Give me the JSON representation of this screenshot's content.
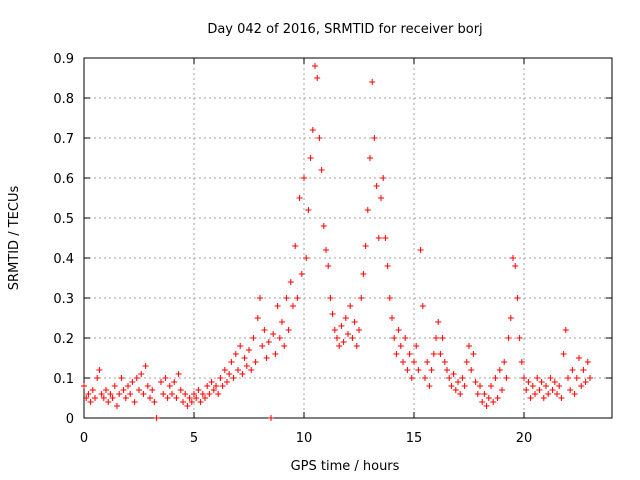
{
  "chart_data": {
    "type": "scatter",
    "title": "Day 042 of 2016, SRMTID for receiver borj",
    "xlabel": "GPS time / hours",
    "ylabel": "SRMTID / TECUs",
    "xlim": [
      0,
      24
    ],
    "ylim": [
      0,
      0.9
    ],
    "xticks": [
      "0",
      "5",
      "10",
      "15",
      "20"
    ],
    "yticks": [
      "0",
      "0.1",
      "0.2",
      "0.3",
      "0.4",
      "0.5",
      "0.6",
      "0.7",
      "0.8",
      "0.9"
    ],
    "grid": true,
    "marker": "plus",
    "marker_color": "#ff0000",
    "series": [
      {
        "name": "SRMTID",
        "points": [
          [
            0.0,
            0.08
          ],
          [
            0.1,
            0.05
          ],
          [
            0.2,
            0.06
          ],
          [
            0.3,
            0.04
          ],
          [
            0.4,
            0.07
          ],
          [
            0.5,
            0.05
          ],
          [
            0.6,
            0.1
          ],
          [
            0.7,
            0.12
          ],
          [
            0.8,
            0.06
          ],
          [
            0.9,
            0.05
          ],
          [
            1.0,
            0.07
          ],
          [
            1.1,
            0.04
          ],
          [
            1.2,
            0.06
          ],
          [
            1.3,
            0.05
          ],
          [
            1.4,
            0.08
          ],
          [
            1.5,
            0.03
          ],
          [
            1.6,
            0.06
          ],
          [
            1.7,
            0.1
          ],
          [
            1.8,
            0.07
          ],
          [
            1.9,
            0.05
          ],
          [
            2.0,
            0.08
          ],
          [
            2.1,
            0.06
          ],
          [
            2.2,
            0.09
          ],
          [
            2.3,
            0.04
          ],
          [
            2.4,
            0.1
          ],
          [
            2.5,
            0.07
          ],
          [
            2.6,
            0.11
          ],
          [
            2.7,
            0.06
          ],
          [
            2.8,
            0.13
          ],
          [
            2.9,
            0.08
          ],
          [
            3.0,
            0.05
          ],
          [
            3.1,
            0.07
          ],
          [
            3.2,
            0.04
          ],
          [
            3.3,
            0.0
          ],
          [
            3.5,
            0.09
          ],
          [
            3.6,
            0.06
          ],
          [
            3.7,
            0.1
          ],
          [
            3.8,
            0.05
          ],
          [
            3.9,
            0.08
          ],
          [
            4.0,
            0.06
          ],
          [
            4.1,
            0.09
          ],
          [
            4.2,
            0.05
          ],
          [
            4.3,
            0.11
          ],
          [
            4.4,
            0.07
          ],
          [
            4.5,
            0.04
          ],
          [
            4.6,
            0.06
          ],
          [
            4.7,
            0.03
          ],
          [
            4.8,
            0.05
          ],
          [
            4.9,
            0.04
          ],
          [
            5.0,
            0.06
          ],
          [
            5.1,
            0.05
          ],
          [
            5.2,
            0.07
          ],
          [
            5.3,
            0.04
          ],
          [
            5.4,
            0.06
          ],
          [
            5.5,
            0.05
          ],
          [
            5.6,
            0.08
          ],
          [
            5.7,
            0.06
          ],
          [
            5.8,
            0.09
          ],
          [
            5.9,
            0.07
          ],
          [
            6.0,
            0.08
          ],
          [
            6.1,
            0.06
          ],
          [
            6.2,
            0.1
          ],
          [
            6.3,
            0.08
          ],
          [
            6.4,
            0.12
          ],
          [
            6.5,
            0.09
          ],
          [
            6.6,
            0.11
          ],
          [
            6.7,
            0.14
          ],
          [
            6.8,
            0.1
          ],
          [
            6.9,
            0.16
          ],
          [
            7.0,
            0.12
          ],
          [
            7.1,
            0.18
          ],
          [
            7.2,
            0.11
          ],
          [
            7.3,
            0.15
          ],
          [
            7.4,
            0.13
          ],
          [
            7.5,
            0.17
          ],
          [
            7.6,
            0.12
          ],
          [
            7.7,
            0.2
          ],
          [
            7.8,
            0.14
          ],
          [
            7.9,
            0.25
          ],
          [
            8.0,
            0.3
          ],
          [
            8.1,
            0.18
          ],
          [
            8.2,
            0.22
          ],
          [
            8.3,
            0.15
          ],
          [
            8.4,
            0.19
          ],
          [
            8.5,
            0.0
          ],
          [
            8.6,
            0.21
          ],
          [
            8.7,
            0.16
          ],
          [
            8.8,
            0.28
          ],
          [
            8.9,
            0.2
          ],
          [
            9.0,
            0.24
          ],
          [
            9.1,
            0.18
          ],
          [
            9.2,
            0.3
          ],
          [
            9.3,
            0.22
          ],
          [
            9.4,
            0.34
          ],
          [
            9.5,
            0.28
          ],
          [
            9.6,
            0.43
          ],
          [
            9.7,
            0.3
          ],
          [
            9.8,
            0.55
          ],
          [
            9.9,
            0.36
          ],
          [
            10.0,
            0.6
          ],
          [
            10.1,
            0.4
          ],
          [
            10.2,
            0.52
          ],
          [
            10.3,
            0.65
          ],
          [
            10.4,
            0.72
          ],
          [
            10.5,
            0.88
          ],
          [
            10.6,
            0.85
          ],
          [
            10.7,
            0.7
          ],
          [
            10.8,
            0.62
          ],
          [
            10.9,
            0.48
          ],
          [
            11.0,
            0.42
          ],
          [
            11.1,
            0.38
          ],
          [
            11.2,
            0.3
          ],
          [
            11.3,
            0.26
          ],
          [
            11.4,
            0.22
          ],
          [
            11.5,
            0.2
          ],
          [
            11.6,
            0.18
          ],
          [
            11.7,
            0.23
          ],
          [
            11.8,
            0.19
          ],
          [
            11.9,
            0.25
          ],
          [
            12.0,
            0.21
          ],
          [
            12.1,
            0.28
          ],
          [
            12.2,
            0.2
          ],
          [
            12.3,
            0.24
          ],
          [
            12.4,
            0.18
          ],
          [
            12.5,
            0.22
          ],
          [
            12.6,
            0.3
          ],
          [
            12.7,
            0.36
          ],
          [
            12.8,
            0.43
          ],
          [
            12.9,
            0.52
          ],
          [
            13.0,
            0.65
          ],
          [
            13.1,
            0.84
          ],
          [
            13.2,
            0.7
          ],
          [
            13.3,
            0.58
          ],
          [
            13.4,
            0.45
          ],
          [
            13.5,
            0.55
          ],
          [
            13.6,
            0.6
          ],
          [
            13.7,
            0.45
          ],
          [
            13.8,
            0.38
          ],
          [
            13.9,
            0.3
          ],
          [
            14.0,
            0.25
          ],
          [
            14.1,
            0.2
          ],
          [
            14.2,
            0.16
          ],
          [
            14.3,
            0.22
          ],
          [
            14.4,
            0.18
          ],
          [
            14.5,
            0.14
          ],
          [
            14.6,
            0.2
          ],
          [
            14.7,
            0.12
          ],
          [
            14.8,
            0.16
          ],
          [
            14.9,
            0.1
          ],
          [
            15.0,
            0.14
          ],
          [
            15.1,
            0.18
          ],
          [
            15.2,
            0.12
          ],
          [
            15.3,
            0.42
          ],
          [
            15.4,
            0.28
          ],
          [
            15.5,
            0.1
          ],
          [
            15.6,
            0.14
          ],
          [
            15.7,
            0.08
          ],
          [
            15.8,
            0.12
          ],
          [
            15.9,
            0.16
          ],
          [
            16.0,
            0.2
          ],
          [
            16.1,
            0.24
          ],
          [
            16.2,
            0.16
          ],
          [
            16.3,
            0.2
          ],
          [
            16.4,
            0.14
          ],
          [
            16.5,
            0.12
          ],
          [
            16.6,
            0.1
          ],
          [
            16.7,
            0.08
          ],
          [
            16.8,
            0.11
          ],
          [
            16.9,
            0.07
          ],
          [
            17.0,
            0.09
          ],
          [
            17.1,
            0.06
          ],
          [
            17.2,
            0.1
          ],
          [
            17.3,
            0.08
          ],
          [
            17.4,
            0.14
          ],
          [
            17.5,
            0.18
          ],
          [
            17.6,
            0.12
          ],
          [
            17.7,
            0.16
          ],
          [
            17.8,
            0.09
          ],
          [
            17.9,
            0.06
          ],
          [
            18.0,
            0.08
          ],
          [
            18.1,
            0.04
          ],
          [
            18.2,
            0.06
          ],
          [
            18.3,
            0.03
          ],
          [
            18.4,
            0.05
          ],
          [
            18.5,
            0.08
          ],
          [
            18.6,
            0.04
          ],
          [
            18.7,
            0.1
          ],
          [
            18.8,
            0.05
          ],
          [
            18.9,
            0.12
          ],
          [
            19.0,
            0.07
          ],
          [
            19.1,
            0.14
          ],
          [
            19.2,
            0.1
          ],
          [
            19.3,
            0.2
          ],
          [
            19.4,
            0.25
          ],
          [
            19.5,
            0.4
          ],
          [
            19.6,
            0.38
          ],
          [
            19.7,
            0.3
          ],
          [
            19.8,
            0.2
          ],
          [
            19.9,
            0.14
          ],
          [
            20.0,
            0.1
          ],
          [
            20.1,
            0.07
          ],
          [
            20.2,
            0.09
          ],
          [
            20.3,
            0.05
          ],
          [
            20.4,
            0.08
          ],
          [
            20.5,
            0.06
          ],
          [
            20.6,
            0.1
          ],
          [
            20.7,
            0.07
          ],
          [
            20.8,
            0.09
          ],
          [
            20.9,
            0.05
          ],
          [
            21.0,
            0.08
          ],
          [
            21.1,
            0.06
          ],
          [
            21.2,
            0.1
          ],
          [
            21.3,
            0.07
          ],
          [
            21.4,
            0.09
          ],
          [
            21.5,
            0.06
          ],
          [
            21.6,
            0.08
          ],
          [
            21.7,
            0.05
          ],
          [
            21.8,
            0.16
          ],
          [
            21.9,
            0.22
          ],
          [
            22.0,
            0.1
          ],
          [
            22.1,
            0.07
          ],
          [
            22.2,
            0.12
          ],
          [
            22.3,
            0.06
          ],
          [
            22.4,
            0.1
          ],
          [
            22.5,
            0.15
          ],
          [
            22.6,
            0.08
          ],
          [
            22.7,
            0.12
          ],
          [
            22.8,
            0.09
          ],
          [
            22.9,
            0.14
          ],
          [
            23.0,
            0.1
          ]
        ]
      }
    ]
  }
}
